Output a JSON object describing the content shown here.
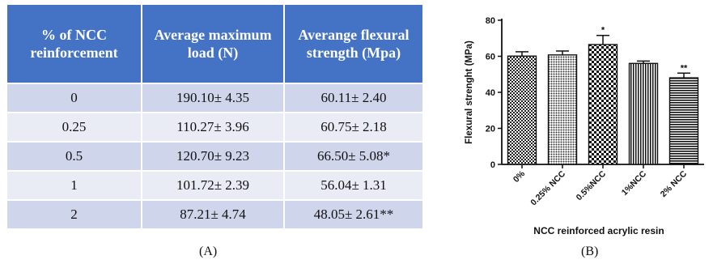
{
  "table": {
    "headers": [
      "% of NCC reinforcement",
      "Average maximum load (N)",
      "Averange flexural strength (Mpa)"
    ],
    "rows": [
      [
        "0",
        "190.10± 4.35",
        "60.11± 2.40"
      ],
      [
        "0.25",
        "110.27± 3.96",
        "60.75± 2.18"
      ],
      [
        "0.5",
        "120.70± 9.23",
        "66.50± 5.08*"
      ],
      [
        "1",
        "101.72± 2.39",
        "56.04± 1.31"
      ],
      [
        "2",
        "87.21± 4.74",
        "48.05± 2.61**"
      ]
    ],
    "header_color": "#4472c4"
  },
  "labels": {
    "a": "(A)",
    "b": "(B)"
  },
  "chart_data": {
    "type": "bar",
    "categories": [
      "0%",
      "0.25% NCC",
      "0.5%NCC",
      "1%NCC",
      "2% NCC"
    ],
    "values": [
      60.11,
      60.75,
      66.5,
      56.04,
      48.05
    ],
    "errors": [
      2.4,
      2.18,
      5.08,
      1.31,
      2.61
    ],
    "annotations": [
      "",
      "",
      "*",
      "",
      "**"
    ],
    "patterns": [
      "checker-fine",
      "dots",
      "checker-coarse",
      "vertical-lines",
      "horizontal-lines"
    ],
    "title": "",
    "xlabel": "NCC reinforced acrylic resin",
    "ylabel": "Flexural strenght (MPa)",
    "ylim": [
      0,
      80
    ],
    "yticks": [
      0,
      20,
      40,
      60,
      80
    ],
    "grid": false
  }
}
